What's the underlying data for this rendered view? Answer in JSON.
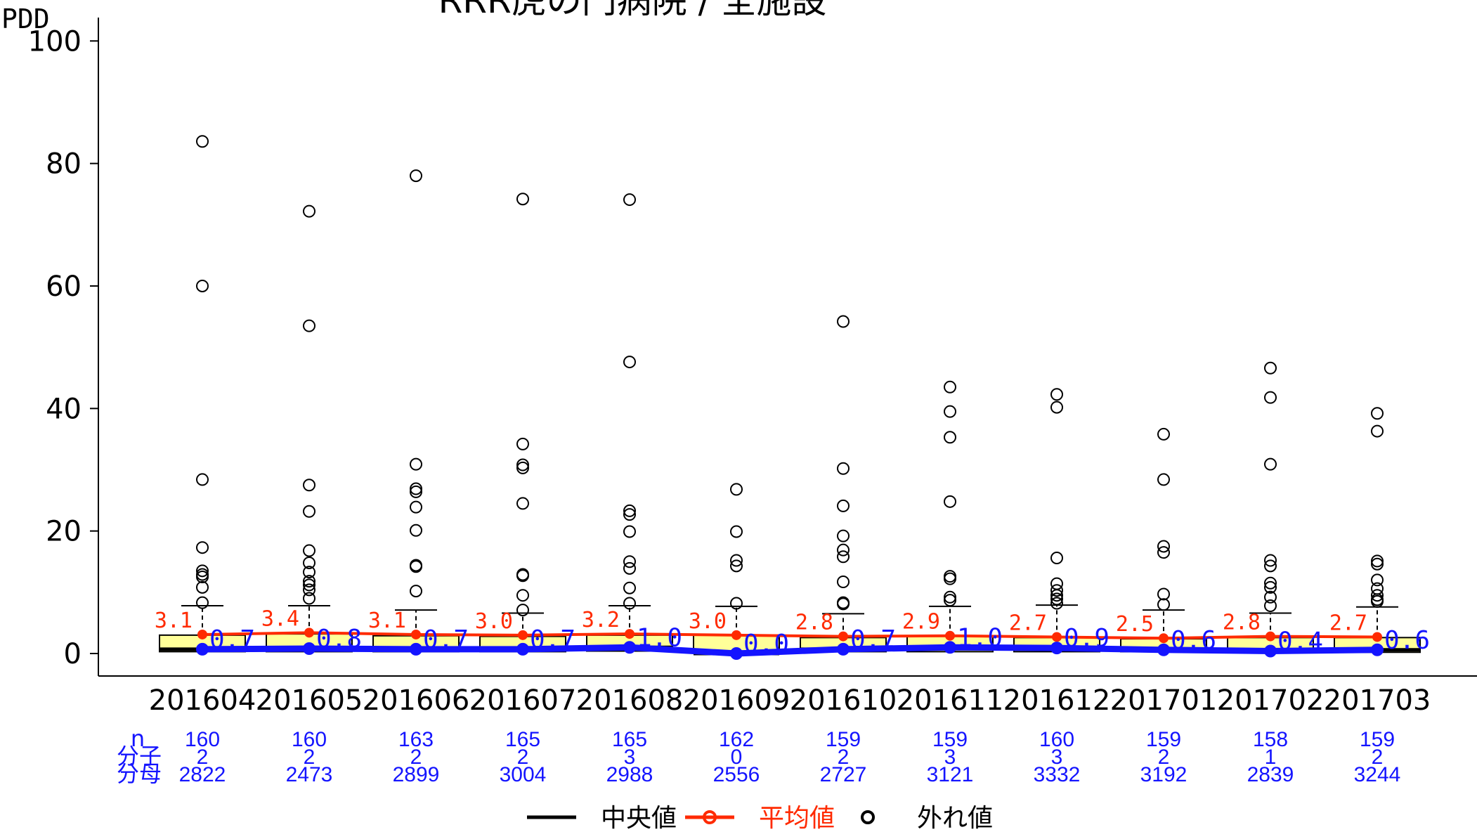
{
  "chart_data": {
    "type": "box",
    "title": "RRR虎の門病院 / 全施設",
    "corner_label": "PDD",
    "ylim": [
      0,
      100
    ],
    "yticks": [
      0,
      20,
      40,
      60,
      80,
      100
    ],
    "categories": [
      "201604",
      "201605",
      "201606",
      "201607",
      "201608",
      "201609",
      "201610",
      "201611",
      "201612",
      "201701",
      "201702",
      "201703"
    ],
    "boxes": [
      {
        "q1": 0.3,
        "q3": 3.0,
        "whisker_high": 7.8
      },
      {
        "q1": 0.3,
        "q3": 3.2,
        "whisker_high": 7.8
      },
      {
        "q1": 0.3,
        "q3": 2.9,
        "whisker_high": 7.1
      },
      {
        "q1": 0.3,
        "q3": 2.8,
        "whisker_high": 6.6
      },
      {
        "q1": 0.4,
        "q3": 3.0,
        "whisker_high": 7.8
      },
      {
        "q1": 0.2,
        "q3": 3.0,
        "whisker_high": 7.7
      },
      {
        "q1": 0.3,
        "q3": 2.6,
        "whisker_high": 6.5
      },
      {
        "q1": 0.3,
        "q3": 2.8,
        "whisker_high": 7.7
      },
      {
        "q1": 0.3,
        "q3": 2.6,
        "whisker_high": 7.9
      },
      {
        "q1": 0.3,
        "q3": 2.4,
        "whisker_high": 7.1
      },
      {
        "q1": 0.2,
        "q3": 2.6,
        "whisker_high": 6.6
      },
      {
        "q1": 0.2,
        "q3": 2.6,
        "whisker_high": 7.6
      }
    ],
    "outliers": [
      [
        83.6,
        60.0,
        28.4,
        17.3,
        13.5,
        12.9,
        12.5,
        10.8,
        8.3
      ],
      [
        72.2,
        53.5,
        27.5,
        23.2,
        16.8,
        14.8,
        13.3,
        11.8,
        11.2,
        10.4,
        9.0
      ],
      [
        78.0,
        30.9,
        26.9,
        26.4,
        23.9,
        20.1,
        14.4,
        14.2,
        10.2
      ],
      [
        74.2,
        34.2,
        30.8,
        30.3,
        24.5,
        12.9,
        12.7,
        9.5,
        7.1
      ],
      [
        74.1,
        47.6,
        23.3,
        22.7,
        19.9,
        15.0,
        13.9,
        10.7,
        8.2
      ],
      [
        26.8,
        19.9,
        15.2,
        14.3,
        8.2
      ],
      [
        54.2,
        30.2,
        24.1,
        19.2,
        16.9,
        15.8,
        11.7,
        8.3,
        8.1
      ],
      [
        43.5,
        39.5,
        35.3,
        24.8,
        12.6,
        12.2,
        9.2,
        8.7
      ],
      [
        42.3,
        40.2,
        15.6,
        11.4,
        10.3,
        9.5,
        8.9,
        8.2
      ],
      [
        35.8,
        28.4,
        17.5,
        16.5,
        9.7,
        8.0
      ],
      [
        46.6,
        41.8,
        30.9,
        15.2,
        14.3,
        11.5,
        10.8,
        9.2,
        7.8
      ],
      [
        39.2,
        36.3,
        15.1,
        14.6,
        12.0,
        10.6,
        9.5,
        8.8,
        8.5
      ]
    ],
    "series": [
      {
        "name": "中央値",
        "values": [
          0.7,
          0.8,
          0.7,
          0.7,
          1.0,
          0.0,
          0.7,
          1.0,
          0.9,
          0.6,
          0.4,
          0.6
        ],
        "labels": [
          "0.7",
          "0.8",
          "0.7",
          "0.7",
          "1.0",
          "0.0",
          "0.7",
          "1.0",
          "0.9",
          "0.6",
          "0.4",
          "0.6"
        ]
      },
      {
        "name": "平均値",
        "values": [
          3.1,
          3.4,
          3.1,
          3.0,
          3.2,
          3.0,
          2.8,
          2.9,
          2.7,
          2.5,
          2.8,
          2.7
        ],
        "labels": [
          "3.1",
          "3.4",
          "3.1",
          "3.0",
          "3.2",
          "3.0",
          "2.8",
          "2.9",
          "2.7",
          "2.5",
          "2.8",
          "2.7"
        ]
      }
    ],
    "table": {
      "row_labels": [
        "n",
        "分子",
        "分母"
      ],
      "n": [
        "160",
        "160",
        "163",
        "165",
        "165",
        "162",
        "159",
        "159",
        "160",
        "159",
        "158",
        "159"
      ],
      "numerator": [
        "2",
        "2",
        "2",
        "2",
        "3",
        "0",
        "2",
        "3",
        "3",
        "2",
        "1",
        "2"
      ],
      "denominator": [
        "2822",
        "2473",
        "2899",
        "3004",
        "2988",
        "2556",
        "2727",
        "3121",
        "3332",
        "3192",
        "2839",
        "3244"
      ]
    },
    "legend": {
      "placement": "bottom",
      "items": [
        "中央値",
        "平均値",
        "外れ値"
      ]
    },
    "colors": {
      "box_fill": "#ffff99",
      "mean": "#ff2a00",
      "median": "#1414ff",
      "outlier": "#000000"
    }
  }
}
